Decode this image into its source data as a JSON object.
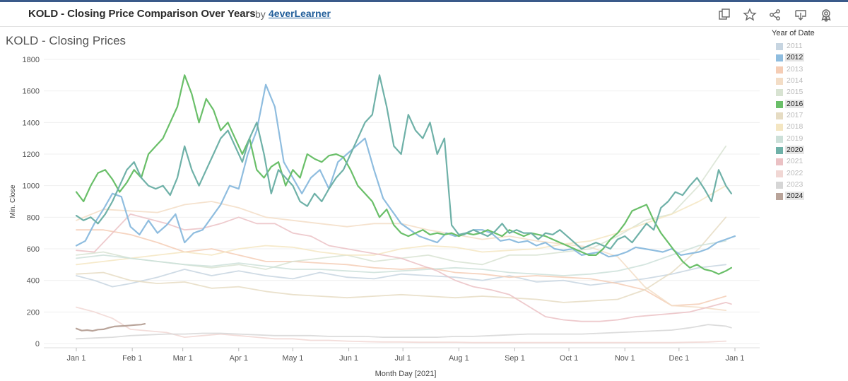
{
  "header": {
    "title": "KOLD - Closing Price Comparison Over Years",
    "by": "by",
    "author": "4everLearner"
  },
  "toolbar": {
    "icons": [
      "duplicate-icon",
      "favorite-star-icon",
      "share-icon",
      "download-icon",
      "badge-icon"
    ]
  },
  "chart_data": {
    "type": "line",
    "title": "KOLD - Closing Prices",
    "xlabel": "Month Day [2021]",
    "ylabel": "Min. Close",
    "ylim": [
      0,
      1800
    ],
    "yticks": [
      0,
      200,
      400,
      600,
      800,
      1000,
      1200,
      1400,
      1600,
      1800
    ],
    "xticks": [
      "Jan 1",
      "Feb 1",
      "Mar 1",
      "Apr 1",
      "May 1",
      "Jun 1",
      "Jul 1",
      "Aug 1",
      "Sep 1",
      "Oct 1",
      "Nov 1",
      "Dec 1",
      "Jan 1"
    ],
    "xtick_days": [
      0,
      31,
      59,
      90,
      120,
      151,
      181,
      212,
      243,
      273,
      304,
      334,
      365
    ],
    "legend_title": "Year of Date",
    "legend_placement": "right",
    "grid": true,
    "series": [
      {
        "name": "2011",
        "color": "#c7d5e1",
        "highlight": false,
        "x": [
          0,
          10,
          20,
          30,
          45,
          60,
          75,
          90,
          105,
          120,
          135,
          150,
          165,
          180,
          195,
          210,
          225,
          240,
          255,
          270,
          285,
          300,
          315,
          330,
          345,
          360
        ],
        "values": [
          430,
          400,
          360,
          380,
          420,
          470,
          430,
          460,
          430,
          410,
          450,
          420,
          410,
          440,
          430,
          420,
          400,
          430,
          390,
          400,
          370,
          390,
          410,
          440,
          480,
          500
        ]
      },
      {
        "name": "2012",
        "color": "#8fbddf",
        "highlight": true,
        "x": [
          0,
          5,
          10,
          15,
          20,
          25,
          30,
          35,
          40,
          45,
          50,
          55,
          60,
          65,
          70,
          75,
          80,
          85,
          90,
          95,
          100,
          105,
          110,
          115,
          120,
          125,
          130,
          135,
          140,
          145,
          150,
          155,
          160,
          165,
          170,
          175,
          180,
          185,
          190,
          195,
          200,
          205,
          210,
          215,
          220,
          225,
          230,
          235,
          240,
          245,
          250,
          255,
          260,
          265,
          270,
          275,
          280,
          285,
          290,
          295,
          300,
          305,
          310,
          315,
          320,
          325,
          330,
          335,
          340,
          345,
          350,
          355,
          360,
          365
        ],
        "values": [
          620,
          650,
          760,
          850,
          950,
          930,
          740,
          690,
          780,
          700,
          750,
          820,
          640,
          700,
          720,
          800,
          880,
          1000,
          980,
          1200,
          1350,
          1640,
          1500,
          1150,
          1050,
          950,
          1050,
          1100,
          980,
          1150,
          1200,
          1250,
          1300,
          1100,
          920,
          840,
          760,
          720,
          680,
          660,
          640,
          700,
          680,
          690,
          720,
          720,
          700,
          650,
          660,
          640,
          650,
          620,
          640,
          600,
          590,
          600,
          560,
          570,
          580,
          550,
          560,
          580,
          610,
          600,
          590,
          580,
          600,
          560,
          570,
          580,
          600,
          640,
          660,
          680
        ]
      },
      {
        "name": "2013",
        "color": "#f5cdb5",
        "highlight": false,
        "x": [
          0,
          15,
          30,
          45,
          60,
          75,
          90,
          105,
          120,
          135,
          150,
          165,
          180,
          195,
          210,
          225,
          240,
          255,
          270,
          285,
          300,
          315,
          330,
          345,
          360
        ],
        "values": [
          720,
          720,
          690,
          640,
          580,
          600,
          560,
          520,
          520,
          510,
          500,
          480,
          470,
          480,
          450,
          440,
          420,
          430,
          420,
          410,
          380,
          340,
          240,
          250,
          300
        ]
      },
      {
        "name": "2014",
        "color": "#f3ddc6",
        "highlight": false,
        "x": [
          0,
          15,
          30,
          45,
          60,
          75,
          90,
          105,
          120,
          135,
          150,
          165,
          180,
          195,
          210,
          225,
          240,
          255,
          270,
          285,
          300,
          315,
          330,
          345,
          360
        ],
        "values": [
          780,
          850,
          840,
          830,
          880,
          900,
          860,
          800,
          780,
          760,
          740,
          760,
          760,
          720,
          690,
          660,
          680,
          650,
          630,
          610,
          550,
          360,
          240,
          230,
          210
        ]
      },
      {
        "name": "2015",
        "color": "#d8e3d2",
        "highlight": false,
        "x": [
          0,
          15,
          30,
          45,
          60,
          75,
          90,
          105,
          120,
          135,
          150,
          165,
          180,
          195,
          210,
          225,
          240,
          255,
          270,
          285,
          300,
          315,
          330,
          345,
          360
        ],
        "values": [
          560,
          580,
          540,
          520,
          500,
          480,
          500,
          470,
          520,
          540,
          560,
          520,
          540,
          560,
          520,
          500,
          560,
          560,
          580,
          600,
          680,
          780,
          820,
          1000,
          1250
        ]
      },
      {
        "name": "2016",
        "color": "#6abf69",
        "highlight": true,
        "x": [
          0,
          4,
          8,
          12,
          16,
          20,
          24,
          28,
          32,
          36,
          40,
          44,
          48,
          52,
          56,
          60,
          64,
          68,
          72,
          76,
          80,
          84,
          88,
          92,
          96,
          100,
          104,
          108,
          112,
          116,
          120,
          124,
          128,
          132,
          136,
          140,
          144,
          148,
          152,
          156,
          160,
          164,
          168,
          172,
          176,
          180,
          184,
          188,
          192,
          196,
          200,
          204,
          208,
          212,
          216,
          220,
          224,
          228,
          232,
          236,
          240,
          244,
          248,
          252,
          256,
          260,
          264,
          268,
          272,
          276,
          280,
          284,
          288,
          292,
          296,
          300,
          304,
          308,
          312,
          316,
          320,
          324,
          328,
          332,
          336,
          340,
          344,
          348,
          352,
          356,
          360,
          363
        ],
        "values": [
          960,
          900,
          1000,
          1080,
          1100,
          1040,
          960,
          1020,
          1100,
          1050,
          1200,
          1250,
          1300,
          1400,
          1500,
          1700,
          1580,
          1400,
          1550,
          1480,
          1350,
          1400,
          1300,
          1200,
          1300,
          1100,
          1050,
          1120,
          1150,
          1000,
          1100,
          1050,
          1200,
          1170,
          1150,
          1190,
          1200,
          1180,
          1100,
          1000,
          950,
          900,
          800,
          850,
          750,
          700,
          680,
          700,
          720,
          690,
          700,
          690,
          700,
          680,
          700,
          690,
          700,
          720,
          700,
          680,
          720,
          700,
          680,
          700,
          690,
          680,
          660,
          640,
          620,
          600,
          580,
          560,
          560,
          600,
          660,
          700,
          760,
          840,
          860,
          880,
          780,
          700,
          640,
          580,
          520,
          480,
          500,
          470,
          460,
          440,
          460,
          480
        ]
      },
      {
        "name": "2017",
        "color": "#e6dcc3",
        "highlight": false,
        "x": [
          0,
          15,
          30,
          45,
          60,
          75,
          90,
          105,
          120,
          135,
          150,
          165,
          180,
          195,
          210,
          225,
          240,
          255,
          270,
          285,
          300,
          315,
          330,
          345,
          360
        ],
        "values": [
          440,
          450,
          400,
          380,
          390,
          350,
          360,
          330,
          310,
          300,
          290,
          300,
          310,
          300,
          290,
          300,
          290,
          280,
          260,
          270,
          280,
          340,
          450,
          600,
          800
        ]
      },
      {
        "name": "2018",
        "color": "#f4e6c2",
        "highlight": false,
        "x": [
          0,
          15,
          30,
          45,
          60,
          75,
          90,
          105,
          120,
          135,
          150,
          165,
          180,
          195,
          210,
          225,
          240,
          255,
          270,
          285,
          300,
          315,
          330,
          345,
          360
        ],
        "values": [
          500,
          520,
          540,
          560,
          580,
          560,
          600,
          620,
          610,
          580,
          560,
          560,
          600,
          620,
          610,
          580,
          590,
          600,
          630,
          650,
          700,
          760,
          820,
          900,
          1000
        ]
      },
      {
        "name": "2019",
        "color": "#cce0d9",
        "highlight": false,
        "x": [
          0,
          15,
          30,
          45,
          60,
          75,
          90,
          105,
          120,
          135,
          150,
          165,
          180,
          195,
          210,
          225,
          240,
          255,
          270,
          285,
          300,
          315,
          330,
          345,
          360
        ],
        "values": [
          540,
          560,
          540,
          520,
          500,
          490,
          510,
          490,
          470,
          470,
          460,
          450,
          460,
          470,
          480,
          470,
          450,
          440,
          430,
          440,
          460,
          500,
          560,
          620,
          650
        ]
      },
      {
        "name": "2020",
        "color": "#6fb1a8",
        "highlight": true,
        "x": [
          0,
          4,
          8,
          12,
          16,
          20,
          24,
          28,
          32,
          36,
          40,
          44,
          48,
          52,
          56,
          60,
          64,
          68,
          72,
          76,
          80,
          84,
          88,
          92,
          96,
          100,
          104,
          108,
          112,
          116,
          120,
          124,
          128,
          132,
          136,
          140,
          144,
          148,
          152,
          156,
          160,
          164,
          168,
          172,
          176,
          180,
          184,
          188,
          192,
          196,
          200,
          204,
          208,
          212,
          216,
          220,
          224,
          228,
          232,
          236,
          240,
          244,
          248,
          252,
          256,
          260,
          264,
          268,
          272,
          276,
          280,
          284,
          288,
          292,
          296,
          300,
          304,
          308,
          312,
          316,
          320,
          324,
          328,
          332,
          336,
          340,
          344,
          348,
          352,
          356,
          360,
          363
        ],
        "values": [
          810,
          780,
          800,
          760,
          820,
          900,
          1000,
          1100,
          1150,
          1050,
          1000,
          980,
          1000,
          940,
          1050,
          1250,
          1100,
          1000,
          1100,
          1200,
          1300,
          1350,
          1250,
          1150,
          1300,
          1400,
          1200,
          950,
          1100,
          1050,
          1000,
          900,
          870,
          950,
          900,
          980,
          1050,
          1100,
          1200,
          1300,
          1400,
          1450,
          1700,
          1500,
          1250,
          1200,
          1450,
          1350,
          1300,
          1400,
          1200,
          1300,
          750,
          690,
          700,
          720,
          700,
          680,
          710,
          760,
          700,
          720,
          700,
          700,
          660,
          700,
          690,
          720,
          680,
          640,
          600,
          620,
          640,
          620,
          600,
          660,
          680,
          640,
          700,
          760,
          720,
          860,
          900,
          960,
          940,
          1000,
          1050,
          980,
          900,
          1100,
          1000,
          950
        ]
      },
      {
        "name": "2021",
        "color": "#ebc1c4",
        "highlight": false,
        "x": [
          0,
          10,
          20,
          30,
          40,
          50,
          60,
          70,
          80,
          90,
          100,
          110,
          120,
          130,
          140,
          150,
          160,
          170,
          180,
          190,
          200,
          210,
          220,
          230,
          240,
          250,
          260,
          270,
          280,
          290,
          300,
          310,
          320,
          330,
          340,
          350,
          360,
          363
        ],
        "values": [
          590,
          580,
          700,
          820,
          790,
          760,
          720,
          730,
          760,
          800,
          760,
          760,
          700,
          680,
          620,
          600,
          580,
          560,
          540,
          500,
          460,
          400,
          360,
          340,
          310,
          240,
          170,
          150,
          140,
          140,
          150,
          170,
          180,
          190,
          200,
          230,
          260,
          250
        ]
      },
      {
        "name": "2022",
        "color": "#f1d7d4",
        "highlight": false,
        "x": [
          0,
          10,
          20,
          30,
          40,
          50,
          60,
          70,
          80,
          90,
          100,
          110,
          120,
          130,
          140,
          150,
          160,
          170,
          180,
          190,
          200,
          210,
          220,
          230,
          240,
          250,
          260,
          270,
          280,
          290,
          300,
          310,
          320,
          330,
          340,
          350,
          360
        ],
        "values": [
          230,
          200,
          160,
          90,
          80,
          70,
          40,
          50,
          60,
          50,
          40,
          30,
          30,
          20,
          20,
          15,
          12,
          10,
          10,
          8,
          8,
          8,
          6,
          6,
          6,
          6,
          6,
          6,
          6,
          6,
          6,
          6,
          6,
          6,
          8,
          10,
          15
        ]
      },
      {
        "name": "2023",
        "color": "#d6d6d6",
        "highlight": false,
        "x": [
          0,
          10,
          20,
          30,
          40,
          50,
          60,
          70,
          80,
          90,
          100,
          110,
          120,
          130,
          140,
          150,
          160,
          170,
          180,
          190,
          200,
          210,
          220,
          230,
          240,
          250,
          260,
          270,
          280,
          290,
          300,
          310,
          320,
          330,
          340,
          350,
          360,
          363
        ],
        "values": [
          30,
          35,
          40,
          50,
          55,
          60,
          60,
          65,
          65,
          60,
          55,
          50,
          50,
          50,
          45,
          45,
          45,
          40,
          40,
          40,
          40,
          45,
          45,
          50,
          55,
          60,
          60,
          60,
          60,
          65,
          70,
          75,
          80,
          85,
          100,
          120,
          110,
          100
        ]
      },
      {
        "name": "2024",
        "color": "#b9a49a",
        "highlight": true,
        "x": [
          0,
          3,
          6,
          9,
          12,
          15,
          18,
          21,
          24,
          27,
          30,
          33,
          36,
          38
        ],
        "values": [
          95,
          82,
          85,
          80,
          88,
          90,
          100,
          108,
          110,
          112,
          115,
          118,
          120,
          125
        ]
      }
    ]
  }
}
